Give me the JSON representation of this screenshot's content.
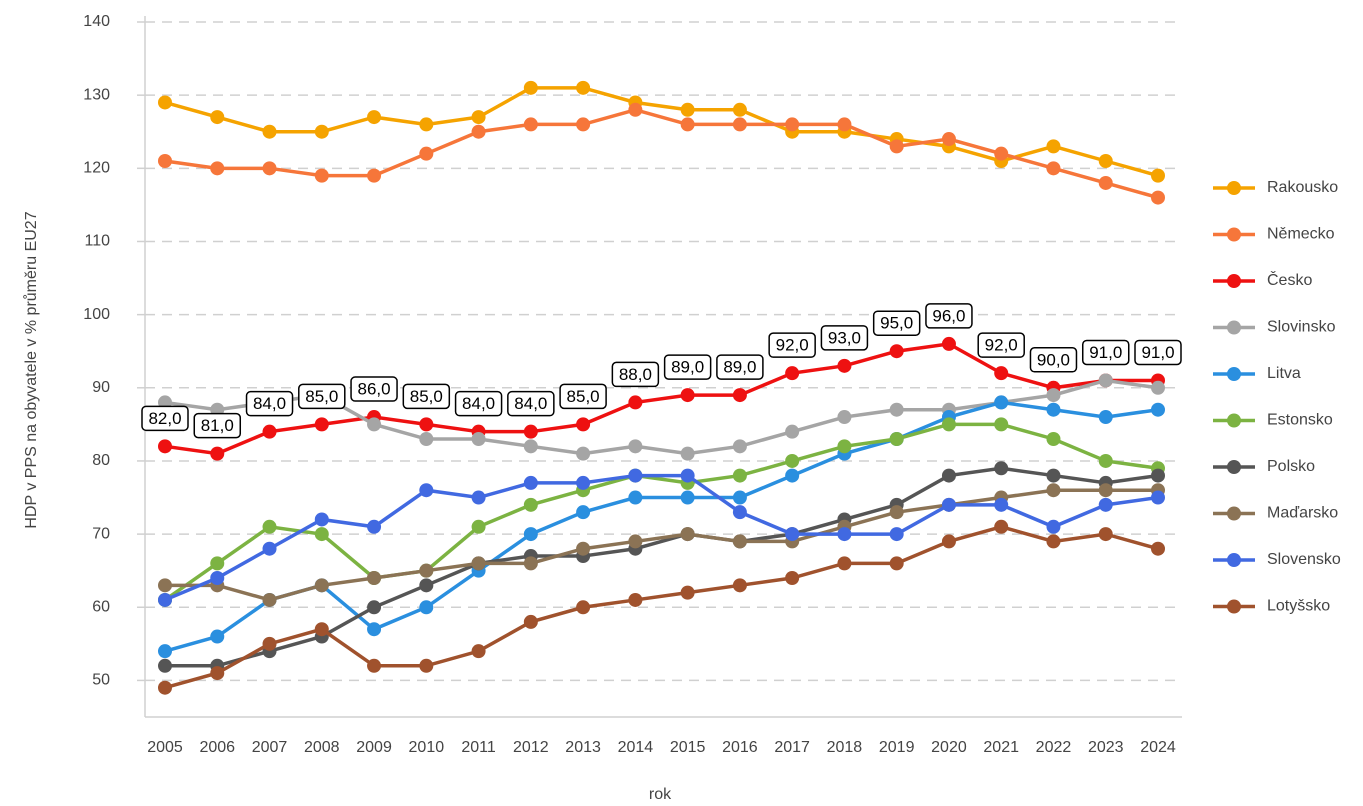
{
  "chart_data": {
    "type": "line",
    "x_label": "rok",
    "y_label": "HDP v PPS na obyvatele v % průměru EU27",
    "categories": [
      "2005",
      "2006",
      "2007",
      "2008",
      "2009",
      "2010",
      "2011",
      "2012",
      "2013",
      "2014",
      "2015",
      "2016",
      "2017",
      "2018",
      "2019",
      "2020",
      "2021",
      "2022",
      "2023",
      "2024"
    ],
    "ylim": [
      45,
      140
    ],
    "yticks": [
      50,
      60,
      70,
      80,
      90,
      100,
      110,
      120,
      130,
      140
    ],
    "grid": true,
    "legend": "right",
    "series": [
      {
        "name": "Rakousko",
        "color": "#f5a300",
        "values": [
          129,
          127,
          125,
          125,
          127,
          126,
          127,
          131,
          131,
          129,
          128,
          128,
          125,
          125,
          124,
          123,
          121,
          123,
          121,
          119
        ]
      },
      {
        "name": "Německo",
        "color": "#f6763a",
        "values": [
          121,
          120,
          120,
          119,
          119,
          122,
          125,
          126,
          126,
          128,
          126,
          126,
          126,
          126,
          123,
          124,
          122,
          120,
          118,
          116
        ]
      },
      {
        "name": "Česko",
        "color": "#ee1111",
        "values": [
          82,
          81,
          84,
          85,
          86,
          85,
          84,
          84,
          85,
          88,
          89,
          89,
          92,
          93,
          95,
          96,
          92,
          90,
          91,
          91
        ],
        "value_labels": [
          "82,0",
          "81,0",
          "84,0",
          "85,0",
          "86,0",
          "85,0",
          "84,0",
          "84,0",
          "85,0",
          "88,0",
          "89,0",
          "89,0",
          "92,0",
          "93,0",
          "95,0",
          "96,0",
          "92,0",
          "90,0",
          "91,0",
          "91,0"
        ]
      },
      {
        "name": "Slovinsko",
        "color": "#a5a5a5",
        "values": [
          88,
          87,
          88,
          89,
          85,
          83,
          83,
          82,
          81,
          82,
          81,
          82,
          84,
          86,
          87,
          87,
          88,
          89,
          91,
          90
        ]
      },
      {
        "name": "Litva",
        "color": "#2a8fdf",
        "values": [
          54,
          56,
          61,
          63,
          57,
          60,
          65,
          70,
          73,
          75,
          75,
          75,
          78,
          81,
          83,
          86,
          88,
          87,
          86,
          87
        ]
      },
      {
        "name": "Estonsko",
        "color": "#7cb342",
        "values": [
          61,
          66,
          71,
          70,
          64,
          65,
          71,
          74,
          76,
          78,
          77,
          78,
          80,
          82,
          83,
          85,
          85,
          83,
          80,
          79
        ]
      },
      {
        "name": "Polsko",
        "color": "#555555",
        "values": [
          52,
          52,
          54,
          56,
          60,
          63,
          66,
          67,
          67,
          68,
          70,
          69,
          70,
          72,
          74,
          78,
          79,
          78,
          77,
          78
        ]
      },
      {
        "name": "Maďarsko",
        "color": "#8b7355",
        "values": [
          63,
          63,
          61,
          63,
          64,
          65,
          66,
          66,
          68,
          69,
          70,
          69,
          69,
          71,
          73,
          74,
          75,
          76,
          76,
          76
        ]
      },
      {
        "name": "Slovensko",
        "color": "#4169e1",
        "values": [
          61,
          64,
          68,
          72,
          71,
          76,
          75,
          77,
          77,
          78,
          78,
          73,
          70,
          70,
          70,
          74,
          74,
          71,
          74,
          75
        ]
      },
      {
        "name": "Lotyšsko",
        "color": "#a0522d",
        "values": [
          49,
          51,
          55,
          57,
          52,
          52,
          54,
          58,
          60,
          61,
          62,
          63,
          64,
          66,
          66,
          69,
          71,
          69,
          70,
          68
        ]
      }
    ]
  }
}
